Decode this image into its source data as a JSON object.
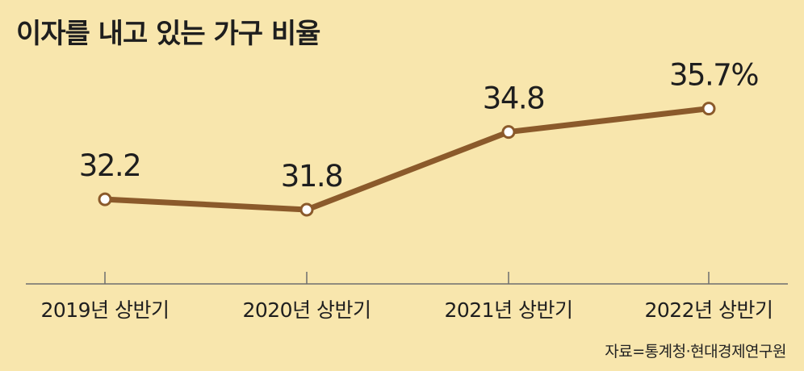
{
  "chart_data": {
    "type": "line",
    "title": "이자를 내고 있는 가구 비율",
    "categories": [
      "2019년 상반기",
      "2020년 상반기",
      "2021년 상반기",
      "2022년 상반기"
    ],
    "series": [
      {
        "values": [
          32.2,
          31.8,
          34.8,
          35.7
        ]
      }
    ],
    "data_labels": [
      "32.2",
      "31.8",
      "34.8",
      "35.7%"
    ],
    "source": "자료=통계청·현대경제연구원",
    "ylim": [
      29,
      37.4
    ],
    "grid": false,
    "line_color": "#8b5a2b",
    "background_color": "#f8e6ad"
  }
}
